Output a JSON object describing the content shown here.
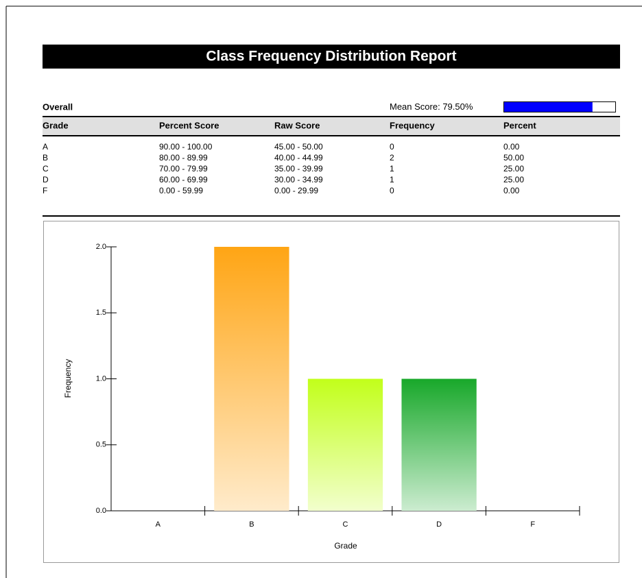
{
  "title": "Class Frequency Distribution Report",
  "section": "Overall",
  "mean_score": {
    "label": "Mean Score:",
    "value": 79.5,
    "value_label": "79.50%",
    "lim": [
      0,
      100
    ],
    "color": "#0000ff"
  },
  "table": {
    "headers": [
      "Grade",
      "Percent Score",
      "Raw Score",
      "Frequency",
      "Percent"
    ],
    "rows": [
      [
        "A",
        "90.00 - 100.00",
        "45.00 - 50.00",
        "0",
        "0.00"
      ],
      [
        "B",
        "80.00 - 89.99",
        "40.00 - 44.99",
        "2",
        "50.00"
      ],
      [
        "C",
        "70.00 - 79.99",
        "35.00 - 39.99",
        "1",
        "25.00"
      ],
      [
        "D",
        "60.00 - 69.99",
        "30.00 - 34.99",
        "1",
        "25.00"
      ],
      [
        "F",
        "0.00 - 59.99",
        "0.00 - 29.99",
        "0",
        "0.00"
      ]
    ]
  },
  "chart_data": {
    "type": "bar",
    "x_label": "Grade",
    "y_label": "Frequency",
    "categories": [
      "A",
      "B",
      "C",
      "D",
      "F"
    ],
    "values": [
      0,
      2,
      1,
      1,
      0
    ],
    "colors": [
      null,
      "#ffa514",
      "#c2ff1a",
      "#18a82a",
      null
    ],
    "ylim": [
      0,
      2
    ],
    "yticks": [
      {
        "value": 0,
        "label": "0.0"
      },
      {
        "value": 0.5,
        "label": "0.5"
      },
      {
        "value": 1,
        "label": "1.0"
      },
      {
        "value": 1.5,
        "label": "1.5"
      },
      {
        "value": 2,
        "label": "2.0"
      }
    ]
  }
}
